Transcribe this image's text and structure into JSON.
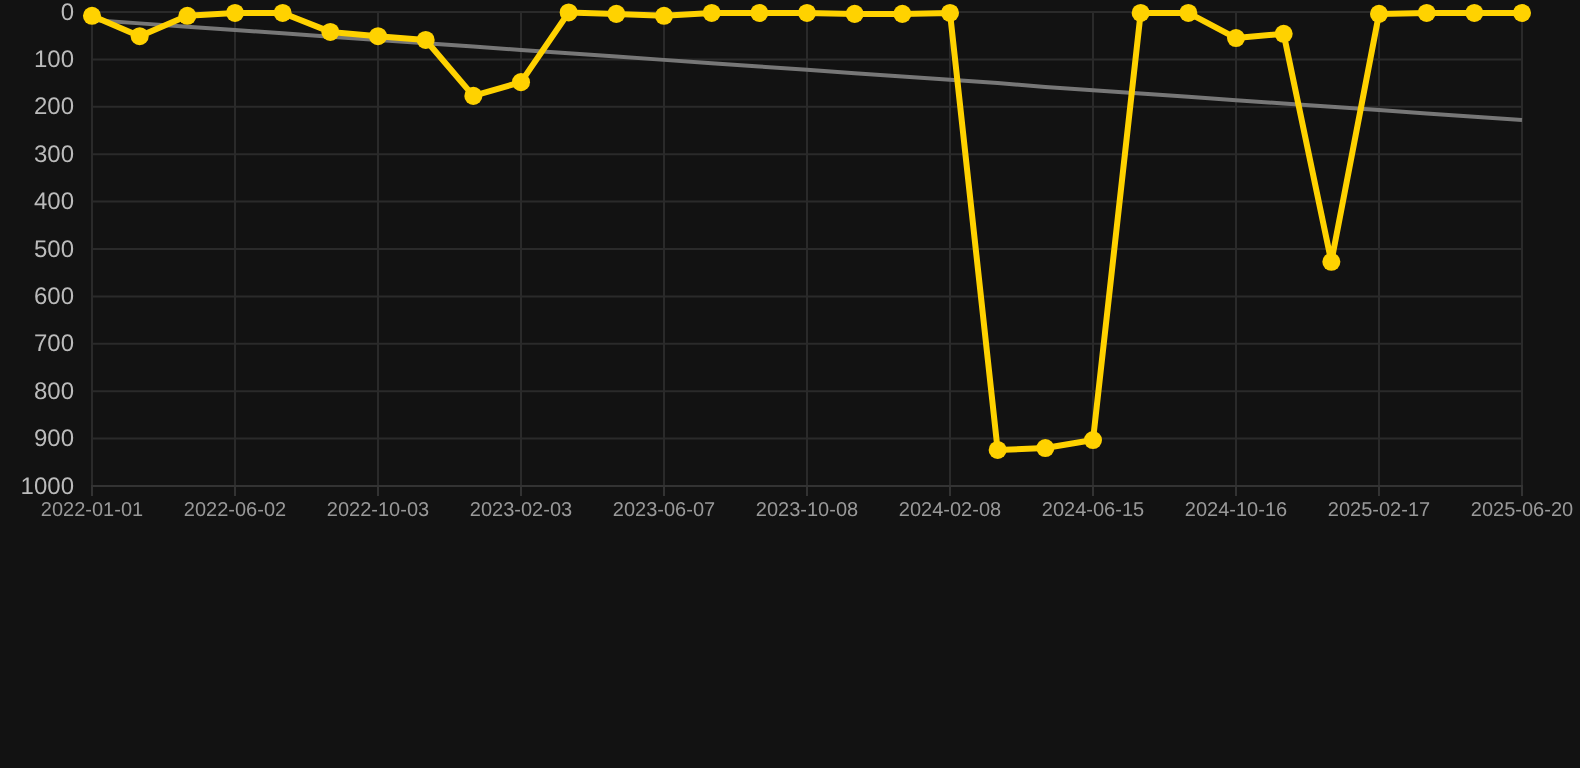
{
  "chart_data": {
    "type": "line",
    "categories": [
      "2022-01-01",
      null,
      null,
      "2022-06-02",
      null,
      null,
      "2022-10-03",
      null,
      null,
      "2023-02-03",
      null,
      null,
      "2023-06-07",
      null,
      null,
      "2023-10-08",
      null,
      null,
      "2024-02-08",
      null,
      null,
      "2024-06-15",
      null,
      null,
      "2024-10-16",
      null,
      null,
      "2025-02-17",
      null,
      null,
      "2025-06-20"
    ],
    "series": [
      {
        "color": "#ffd200",
        "marker": "circle",
        "values": [
          8,
          51,
          8,
          2,
          2,
          42,
          51,
          59,
          177,
          148,
          1,
          4,
          8,
          2,
          2,
          2,
          4,
          4,
          2,
          924,
          920,
          903,
          2,
          2,
          55,
          46,
          527,
          4,
          2,
          2,
          2
        ]
      },
      {
        "type": "line",
        "color": "#777777",
        "marker": "none",
        "values": [
          17,
          24,
          31,
          38,
          45,
          52,
          59,
          66,
          73,
          80,
          87,
          94,
          101,
          108,
          115,
          122,
          129,
          136,
          143,
          150,
          158,
          165,
          172,
          179,
          186,
          193,
          200,
          207,
          214,
          221,
          228
        ]
      }
    ],
    "ylim": [
      1000,
      0
    ],
    "yticks": [
      0,
      100,
      200,
      300,
      400,
      500,
      600,
      700,
      800,
      900,
      1000
    ],
    "grid": true
  }
}
